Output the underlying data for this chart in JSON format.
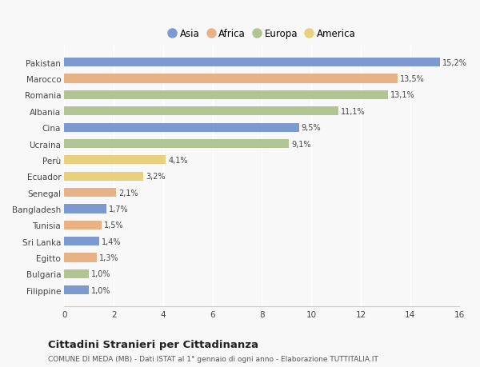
{
  "countries": [
    "Pakistan",
    "Marocco",
    "Romania",
    "Albania",
    "Cina",
    "Ucraina",
    "Perù",
    "Ecuador",
    "Senegal",
    "Bangladesh",
    "Tunisia",
    "Sri Lanka",
    "Egitto",
    "Bulgaria",
    "Filippine"
  ],
  "values": [
    15.2,
    13.5,
    13.1,
    11.1,
    9.5,
    9.1,
    4.1,
    3.2,
    2.1,
    1.7,
    1.5,
    1.4,
    1.3,
    1.0,
    1.0
  ],
  "labels": [
    "15,2%",
    "13,5%",
    "13,1%",
    "11,1%",
    "9,5%",
    "9,1%",
    "4,1%",
    "3,2%",
    "2,1%",
    "1,7%",
    "1,5%",
    "1,4%",
    "1,3%",
    "1,0%",
    "1,0%"
  ],
  "continents": [
    "Asia",
    "Africa",
    "Europa",
    "Europa",
    "Asia",
    "Europa",
    "America",
    "America",
    "Africa",
    "Asia",
    "Africa",
    "Asia",
    "Africa",
    "Europa",
    "Asia"
  ],
  "colors": {
    "Asia": "#6f8fcc",
    "Africa": "#e8aa7a",
    "Europa": "#aabf88",
    "America": "#e8cc70"
  },
  "legend_order": [
    "Asia",
    "Africa",
    "Europa",
    "America"
  ],
  "xlim": [
    0,
    16
  ],
  "xticks": [
    0,
    2,
    4,
    6,
    8,
    10,
    12,
    14,
    16
  ],
  "title": "Cittadini Stranieri per Cittadinanza",
  "subtitle": "COMUNE DI MEDA (MB) - Dati ISTAT al 1° gennaio di ogni anno - Elaborazione TUTTITALIA.IT",
  "background_color": "#f8f8f8",
  "bar_height": 0.55
}
